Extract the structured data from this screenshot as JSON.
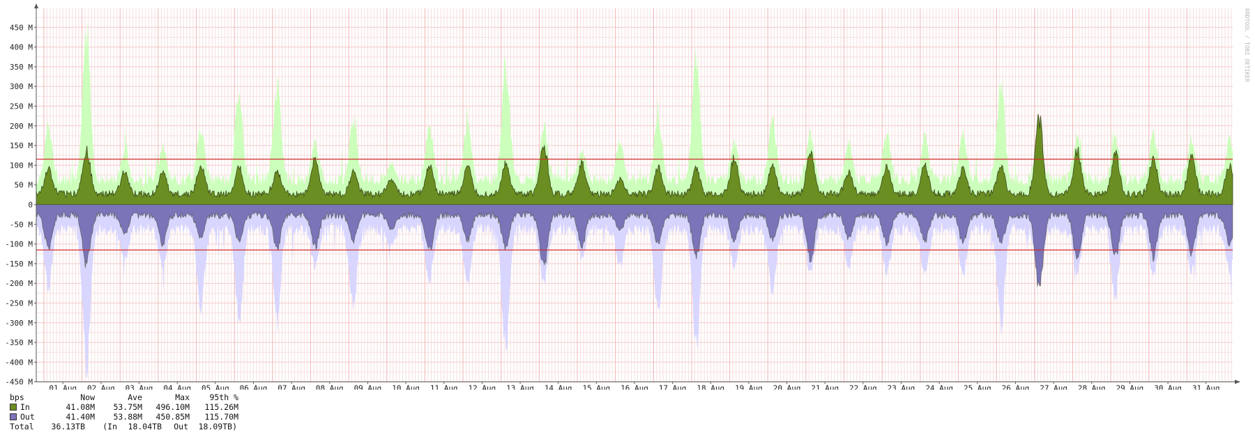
{
  "chart_data": {
    "type": "area",
    "title": "",
    "unit_label": "bps",
    "watermark": "RRDTOOL / TOBI OETIKER",
    "x_labels": [
      "01 Aug",
      "02 Aug",
      "03 Aug",
      "04 Aug",
      "05 Aug",
      "06 Aug",
      "07 Aug",
      "08 Aug",
      "09 Aug",
      "10 Aug",
      "11 Aug",
      "12 Aug",
      "13 Aug",
      "14 Aug",
      "15 Aug",
      "16 Aug",
      "17 Aug",
      "18 Aug",
      "19 Aug",
      "20 Aug",
      "21 Aug",
      "22 Aug",
      "23 Aug",
      "24 Aug",
      "25 Aug",
      "26 Aug",
      "27 Aug",
      "28 Aug",
      "29 Aug",
      "30 Aug",
      "31 Aug"
    ],
    "y_labels": [
      "450 M",
      "400 M",
      "350 M",
      "300 M",
      "250 M",
      "200 M",
      "150 M",
      "100 M",
      "50 M",
      "0",
      "-50 M",
      "-100 M",
      "-150 M",
      "-200 M",
      "-250 M",
      "-300 M",
      "-350 M",
      "-400 M",
      "-450 M"
    ],
    "y_tick_values": [
      450,
      400,
      350,
      300,
      250,
      200,
      150,
      100,
      50,
      0,
      -50,
      -100,
      -150,
      -200,
      -250,
      -300,
      -350,
      -400,
      -450
    ],
    "ylim": [
      -450,
      490
    ],
    "x_domain_days": [
      0.3,
      31.7
    ],
    "grid": true,
    "percentile_line": 115.26,
    "percentile_line_color": "#d42a2a",
    "series": [
      {
        "name": "In",
        "direction": "positive",
        "color": "#6b8e23",
        "max_color": "#ccffbb",
        "daily_peak": [
          100,
          155,
          95,
          90,
          110,
          105,
          95,
          130,
          90,
          70,
          110,
          105,
          115,
          170,
          115,
          70,
          105,
          100,
          130,
          105,
          145,
          90,
          105,
          110,
          100,
          110,
          240,
          155,
          145,
          130,
          140,
          110
        ],
        "daily_max_peak": [
          220,
          490,
          150,
          160,
          210,
          320,
          330,
          170,
          240,
          110,
          220,
          225,
          395,
          220,
          150,
          175,
          250,
          430,
          170,
          240,
          195,
          170,
          195,
          190,
          195,
          340,
          210,
          195,
          180,
          200,
          185,
          180
        ]
      },
      {
        "name": "Out",
        "direction": "negative",
        "color": "#7b74b8",
        "max_color": "#d8d6ff",
        "daily_peak": [
          120,
          170,
          80,
          110,
          90,
          105,
          125,
          120,
          100,
          70,
          130,
          100,
          120,
          175,
          115,
          70,
          110,
          145,
          100,
          100,
          150,
          95,
          110,
          105,
          110,
          110,
          245,
          155,
          150,
          145,
          135,
          110
        ],
        "daily_max_peak": [
          230,
          445,
          150,
          170,
          290,
          320,
          330,
          170,
          290,
          110,
          215,
          225,
          405,
          220,
          150,
          175,
          290,
          400,
          170,
          240,
          195,
          170,
          195,
          195,
          195,
          340,
          210,
          195,
          250,
          200,
          185,
          180
        ]
      }
    ]
  },
  "legend": {
    "header": {
      "label": "bps",
      "now": "Now",
      "ave": "Ave",
      "max": "Max",
      "p95": "95th %"
    },
    "rows": [
      {
        "name": "In",
        "now": "41.08M",
        "ave": "53.75M",
        "max": "496.10M",
        "p95": "115.26M",
        "color": "#6b8e23"
      },
      {
        "name": "Out",
        "now": "41.40M",
        "ave": "53.88M",
        "max": "450.85M",
        "p95": "115.70M",
        "color": "#7b74b8"
      }
    ],
    "total": {
      "label": "Total",
      "total": "36.13TB",
      "in_label": "(In",
      "in": "18.04TB",
      "out_label": "Out",
      "out": "18.09TB)"
    }
  }
}
